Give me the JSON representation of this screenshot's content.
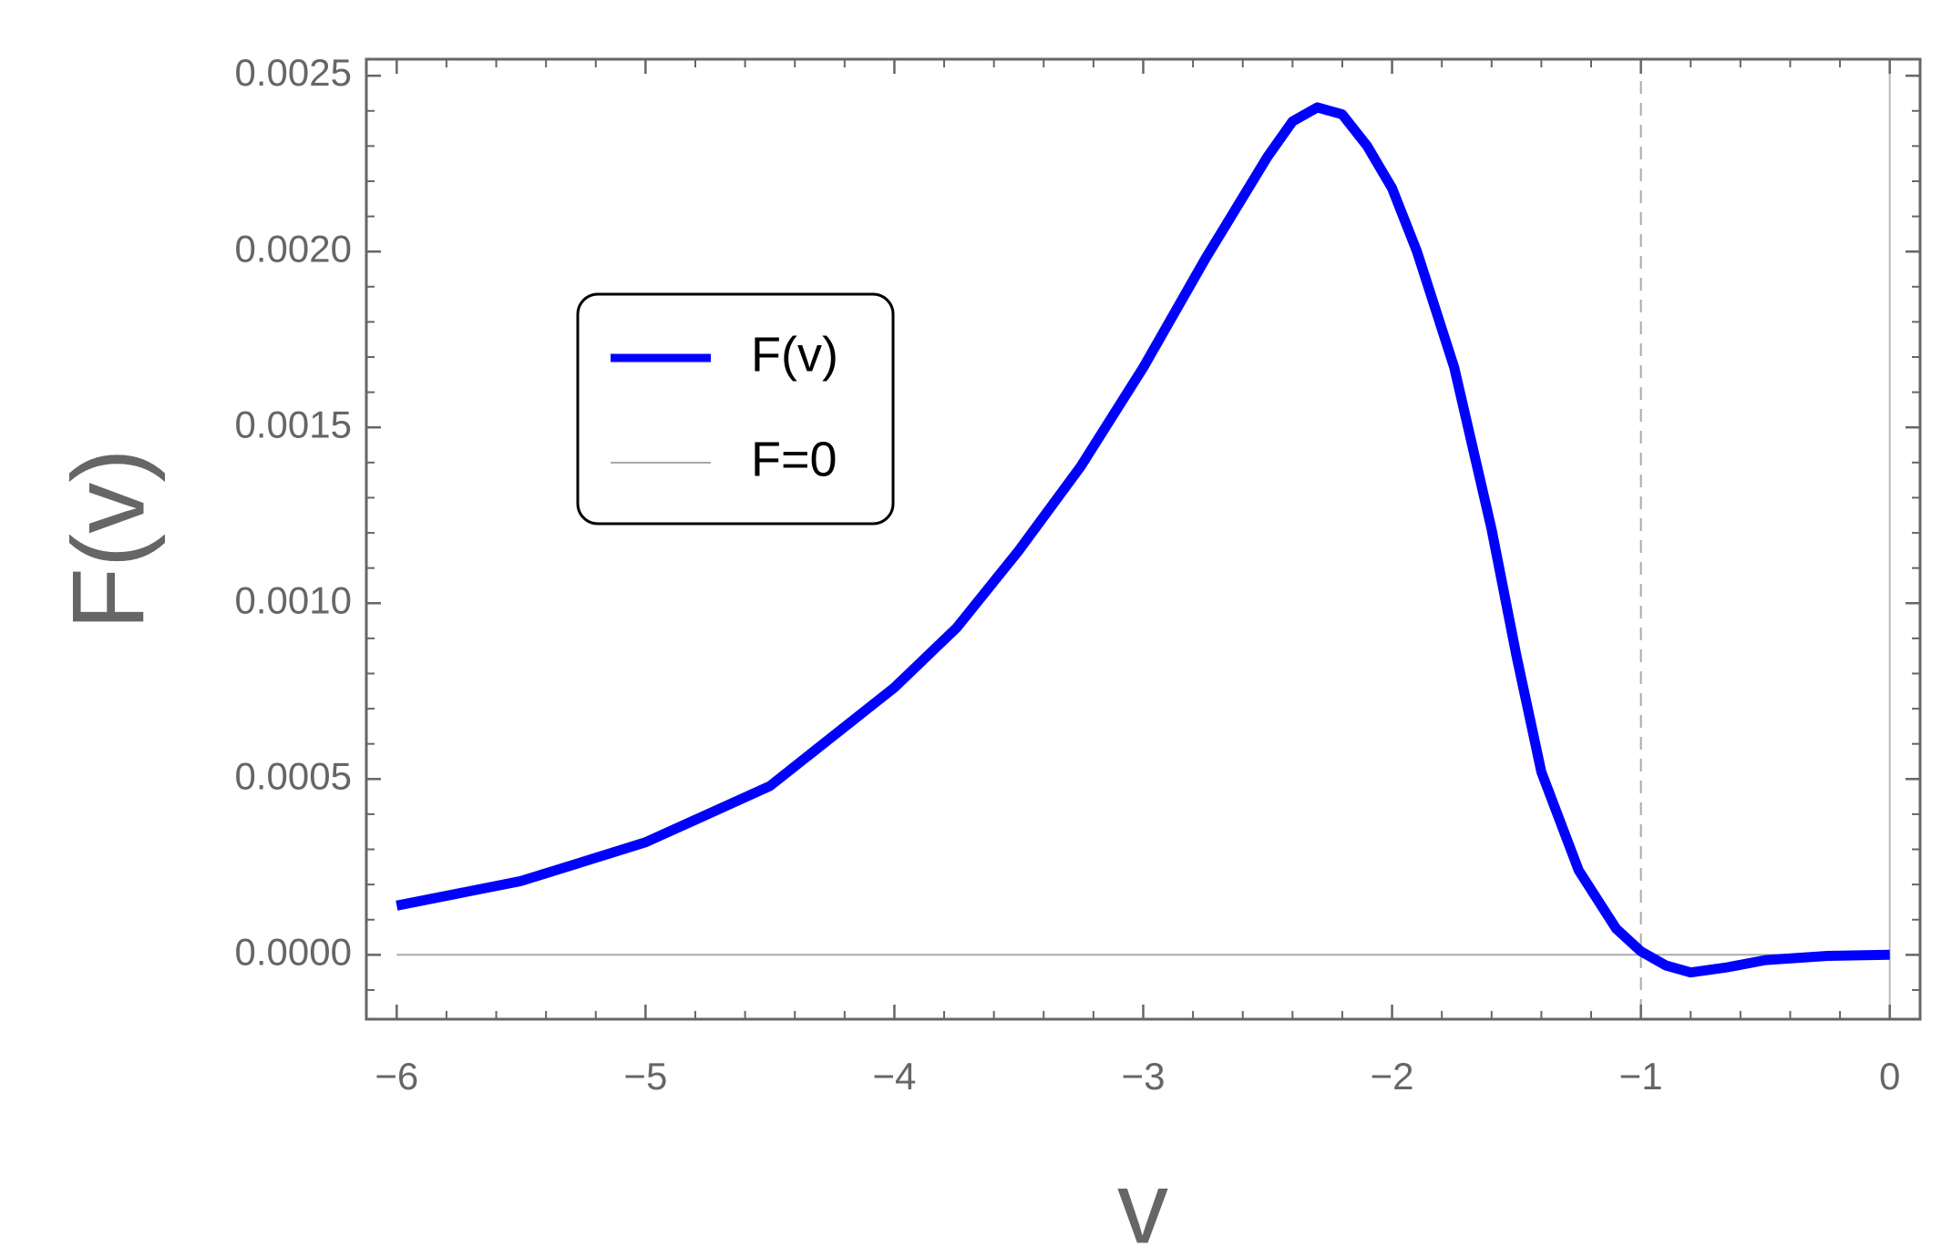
{
  "chart_data": {
    "type": "line",
    "xlabel": "v",
    "ylabel": "F(v)",
    "xlim": [
      -6.122,
      0.122
    ],
    "ylim": [
      -0.000183,
      0.002547
    ],
    "xticks": [
      {
        "value": -6,
        "label": "−6"
      },
      {
        "value": -5,
        "label": "−5"
      },
      {
        "value": -4,
        "label": "−4"
      },
      {
        "value": -3,
        "label": "−3"
      },
      {
        "value": -2,
        "label": "−2"
      },
      {
        "value": -1,
        "label": "−1"
      },
      0
    ],
    "yticks": [
      {
        "value": 0,
        "label": "0.0000"
      },
      {
        "value": 0.0005,
        "label": "0.0005"
      },
      {
        "value": 0.001,
        "label": "0.0010"
      },
      {
        "value": 0.0015,
        "label": "0.0015"
      },
      {
        "value": 0.002,
        "label": "0.0020"
      },
      {
        "value": 0.0025,
        "label": "0.0025"
      }
    ],
    "vline": -1,
    "legend": "upper-left",
    "series": [
      {
        "name": "F(v)",
        "color": "#0000ff",
        "x": [
          -6,
          -5.5,
          -5,
          -4.5,
          -4,
          -3.75,
          -3.5,
          -3.25,
          -3,
          -2.75,
          -2.5,
          -2.4,
          -2.3,
          -2.2,
          -2.1,
          -2,
          -1.9,
          -1.75,
          -1.6,
          -1.5,
          -1.4,
          -1.25,
          -1.1,
          -1,
          -0.9,
          -0.8,
          -0.65,
          -0.5,
          -0.25,
          0
        ],
        "values": [
          0.00014,
          0.00021,
          0.00032,
          0.00048,
          0.00076,
          0.00093,
          0.00115,
          0.00139,
          0.00167,
          0.00198,
          0.00227,
          0.00237,
          0.00241,
          0.00239,
          0.0023,
          0.00218,
          0.002,
          0.00167,
          0.00121,
          0.00085,
          0.00052,
          0.00024,
          7.5e-05,
          1e-05,
          -3e-05,
          -5e-05,
          -3.5e-05,
          -1.5e-05,
          -3e-06,
          0
        ]
      },
      {
        "name": "F=0",
        "color": "#aaaaaa",
        "x": [
          -6,
          0
        ],
        "values": [
          0,
          0
        ]
      }
    ]
  }
}
